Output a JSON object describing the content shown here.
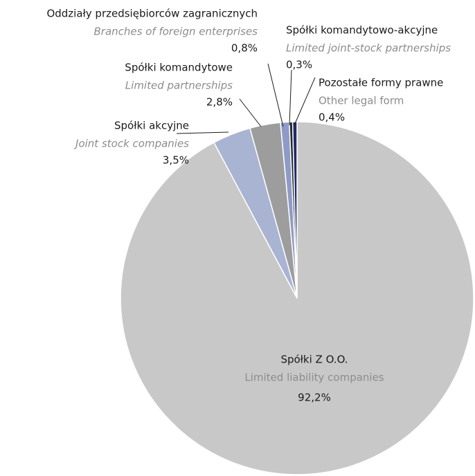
{
  "chart_data": {
    "type": "pie",
    "categories": [
      "Spółki Z O.O.",
      "Spółki akcyjne",
      "Spółki komandytowe",
      "Oddziały przedsiębiorców zagranicznych",
      "Spółki komandytowo-akcyjne",
      "Pozostałe formy prawne"
    ],
    "subcategories": [
      "Limited liability companies",
      "Joint stock companies",
      "Limited partnerships",
      "Branches of foreign enterprises",
      "Limited joint-stock partnerships",
      "Other legal form"
    ],
    "values": [
      92.2,
      3.5,
      2.8,
      0.8,
      0.3,
      0.4
    ],
    "value_labels": [
      "92,2%",
      "3,5%",
      "2,8%",
      "0,8%",
      "0,3%",
      "0,4%"
    ],
    "colors": [
      "#c8c8c8",
      "#a9b3d2",
      "#9d9d9d",
      "#8e9bc7",
      "#2b2b2b",
      "#1f2b66"
    ]
  }
}
